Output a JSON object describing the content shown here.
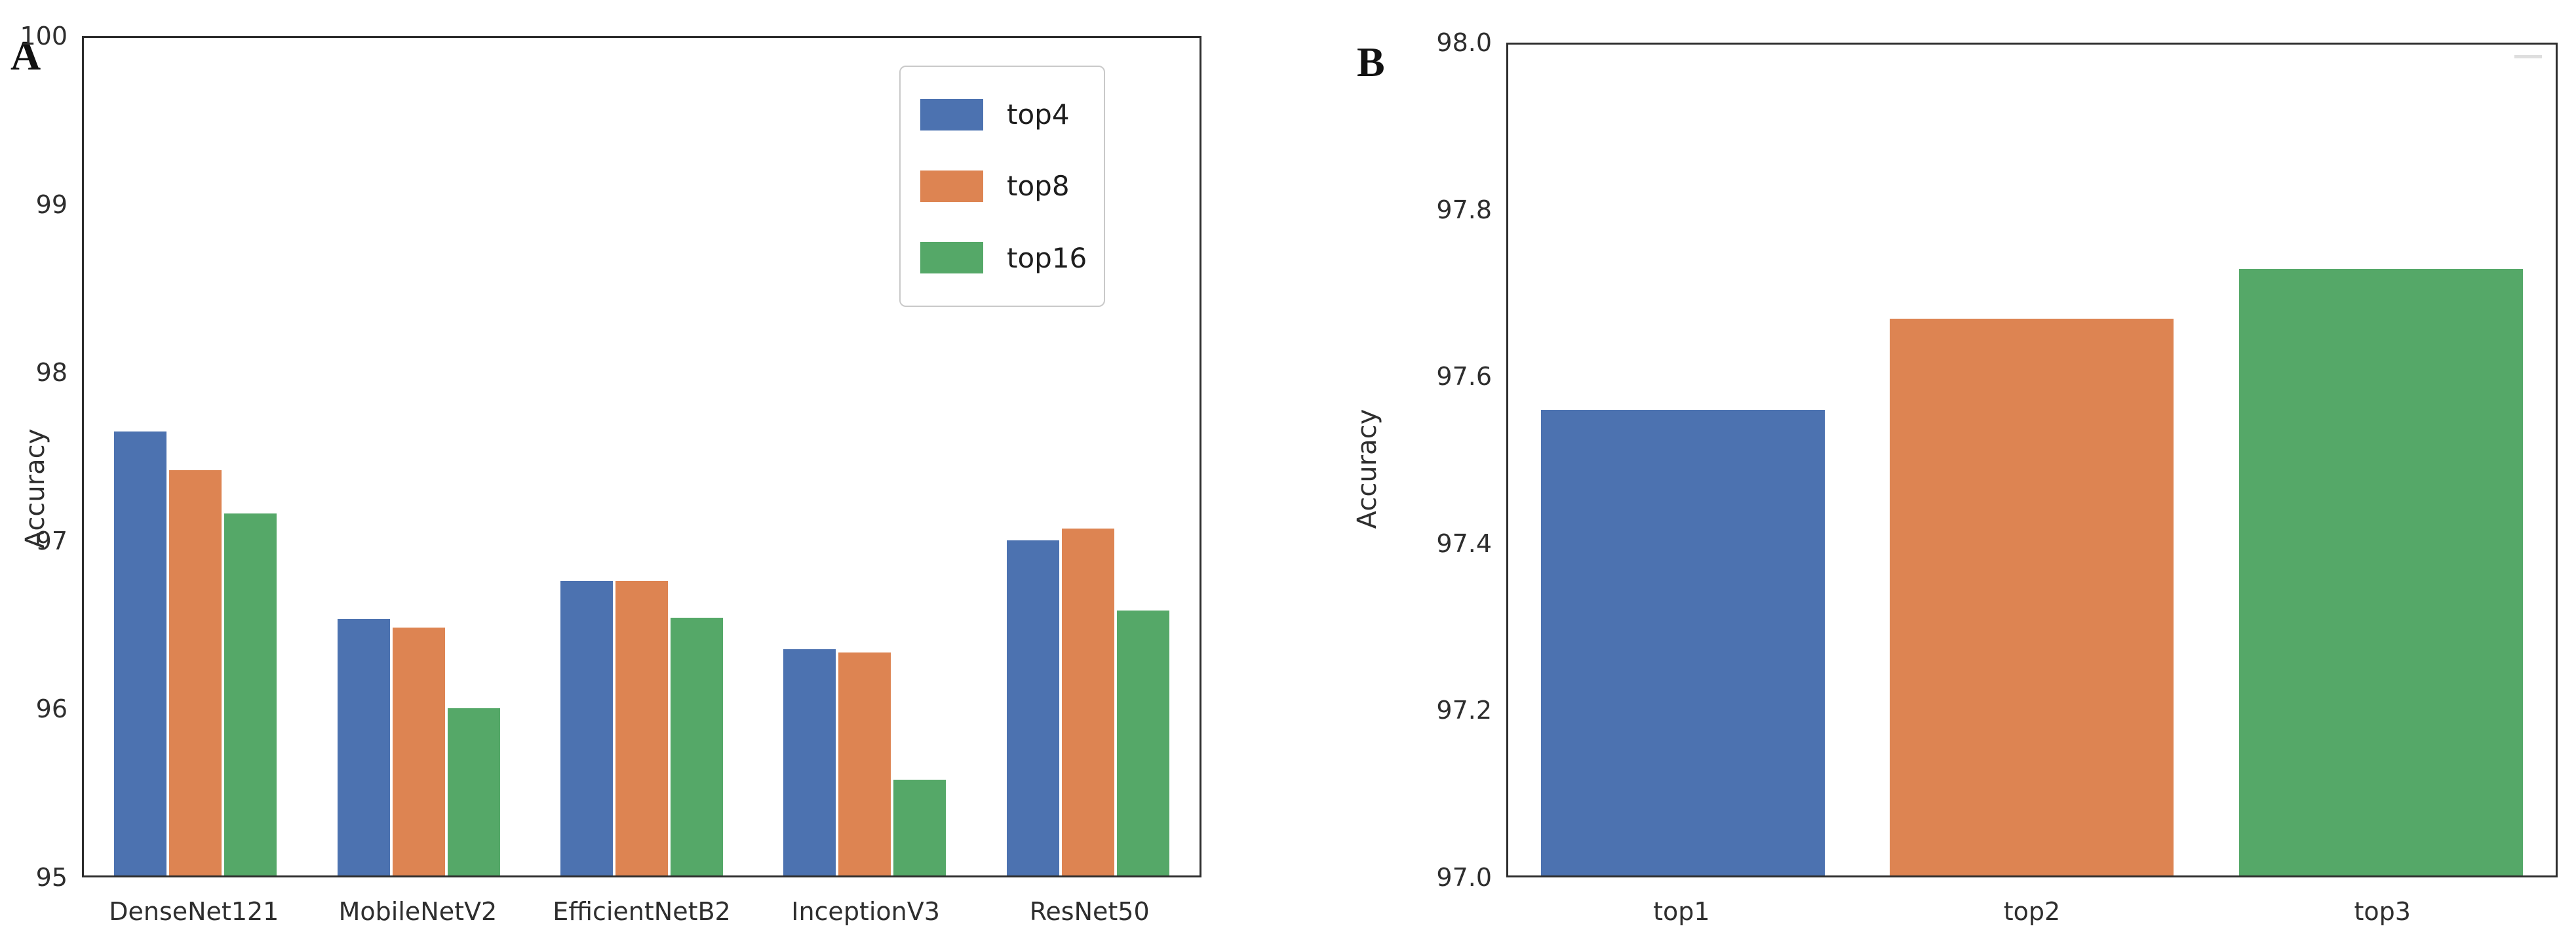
{
  "figure": {
    "panel_a_label": "A",
    "panel_b_label": "B"
  },
  "palette": {
    "blue": "#4C72B0",
    "orange": "#DD8452",
    "green": "#55A868",
    "spine": "#2d2d2d",
    "legend_border": "#c9c9c9"
  },
  "chart_data": [
    {
      "type": "bar",
      "panel": "A",
      "title": "",
      "xlabel": "",
      "ylabel": "Accuracy",
      "ylim": [
        95,
        100
      ],
      "yticks": [
        100,
        99,
        98,
        97,
        96,
        95
      ],
      "ytick_labels": [
        "100",
        "99",
        "98",
        "97",
        "96",
        "95"
      ],
      "grid": false,
      "legend_position": "upper right",
      "categories": [
        "DenseNet121",
        "MobileNetV2",
        "EfficientNetB2",
        "InceptionV3",
        "ResNet50"
      ],
      "series": [
        {
          "name": "top4",
          "color": "#4C72B0",
          "values": [
            97.65,
            96.53,
            96.76,
            96.35,
            97.0
          ]
        },
        {
          "name": "top8",
          "color": "#DD8452",
          "values": [
            97.42,
            96.48,
            96.76,
            96.33,
            97.07
          ]
        },
        {
          "name": "top16",
          "color": "#55A868",
          "values": [
            97.16,
            96.0,
            96.54,
            95.57,
            96.58
          ]
        }
      ]
    },
    {
      "type": "bar",
      "panel": "B",
      "title": "",
      "xlabel": "",
      "ylabel": "Accuracy",
      "ylim": [
        97.0,
        98.0
      ],
      "yticks": [
        98.0,
        97.8,
        97.6,
        97.4,
        97.2,
        97.0
      ],
      "ytick_labels": [
        "98.0",
        "97.8",
        "97.6",
        "97.4",
        "97.2",
        "97.0"
      ],
      "grid": false,
      "legend_position": "none",
      "categories": [
        "top1",
        "top2",
        "top3"
      ],
      "series": [
        {
          "name": "accuracy",
          "colors": [
            "#4C72B0",
            "#DD8452",
            "#55A868"
          ],
          "values": [
            97.56,
            97.67,
            97.73
          ]
        }
      ]
    }
  ]
}
